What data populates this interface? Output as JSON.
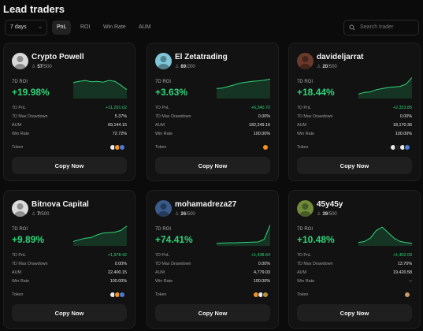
{
  "page": {
    "title": "Lead traders"
  },
  "toolbar": {
    "period_label": "7 days",
    "tabs": [
      {
        "label": "PnL",
        "active": true
      },
      {
        "label": "ROI",
        "active": false
      },
      {
        "label": "Win Rate",
        "active": false
      },
      {
        "label": "AUM",
        "active": false
      }
    ],
    "search_placeholder": "Search trader"
  },
  "card_labels": {
    "roi": "7D ROI",
    "pnl": "7D PnL",
    "drawdown": "7D Max Drawdown",
    "aum": "AUM",
    "win_rate": "Win Rate",
    "token": "Token",
    "copy_button": "Copy Now"
  },
  "traders": [
    {
      "name": "Crypto Powell",
      "followers_current": "57",
      "followers_max": "/500",
      "roi": "+19.98%",
      "pnl": "+11,291.02",
      "max_drawdown": "5.37%",
      "aum": "69,144.15",
      "win_rate": "72.72%",
      "avatar_icon": "crypto-powell-avatar-icon",
      "tokens": [
        "#e9e9e9",
        "#f7931a",
        "#4a7ad8"
      ],
      "spark": [
        0.72,
        0.78,
        0.82,
        0.76,
        0.78,
        0.74,
        0.82,
        0.78,
        0.6,
        0.4
      ]
    },
    {
      "name": "El Zetatrading",
      "followers_current": "89",
      "followers_max": "/200",
      "roi": "+3.63%",
      "pnl": "+6,340.72",
      "max_drawdown": "0.00%",
      "aum": "182,249.16",
      "win_rate": "100.00%",
      "avatar_icon": "el-zetatrading-avatar-icon",
      "tokens": [
        "#f7931a"
      ],
      "spark": [
        0.45,
        0.48,
        0.55,
        0.62,
        0.7,
        0.74,
        0.78,
        0.8,
        0.83,
        0.88
      ]
    },
    {
      "name": "davideljarrat",
      "followers_current": "20",
      "followers_max": "/500",
      "roi": "+18.44%",
      "pnl": "+2,323.85",
      "max_drawdown": "0.00%",
      "aum": "18,170.36",
      "win_rate": "100.00%",
      "avatar_icon": "davideljarrat-avatar-icon",
      "tokens": [
        "#e9e9e9",
        "#222222",
        "#e9e9e9",
        "#4a7ad8"
      ],
      "spark": [
        0.2,
        0.28,
        0.3,
        0.4,
        0.45,
        0.5,
        0.52,
        0.55,
        0.65,
        0.95
      ]
    },
    {
      "name": "Bitnova Capital",
      "followers_current": "7",
      "followers_max": "/500",
      "roi": "+9.89%",
      "pnl": "+1,978.42",
      "max_drawdown": "0.00%",
      "aum": "22,400.15",
      "win_rate": "100.00%",
      "avatar_icon": "bitnova-capital-avatar-icon",
      "tokens": [
        "#e9e9e9",
        "#f7931a",
        "#4a7ad8"
      ],
      "spark": [
        0.2,
        0.28,
        0.35,
        0.38,
        0.5,
        0.58,
        0.6,
        0.62,
        0.7,
        0.9
      ]
    },
    {
      "name": "mohamadreza27",
      "followers_current": "26",
      "followers_max": "/500",
      "roi": "+74.41%",
      "pnl": "+1,438.64",
      "max_drawdown": "0.00%",
      "aum": "4,779.03",
      "win_rate": "100.00%",
      "avatar_icon": "mohamadreza27-avatar-icon",
      "tokens": [
        "#f7931a",
        "#e9e9e9",
        "#b8903a"
      ],
      "spark": [
        0.12,
        0.13,
        0.14,
        0.14,
        0.15,
        0.16,
        0.17,
        0.18,
        0.3,
        0.95
      ]
    },
    {
      "name": "45y45y",
      "followers_current": "39",
      "followers_max": "/500",
      "roi": "+10.48%",
      "pnl": "+1,402.09",
      "max_drawdown": "13.70%",
      "aum": "19,420.58",
      "win_rate": "--",
      "avatar_icon": "45y45y-avatar-icon",
      "tokens": [
        "#c79a6a"
      ],
      "spark": [
        0.15,
        0.2,
        0.35,
        0.7,
        0.85,
        0.6,
        0.35,
        0.2,
        0.15,
        0.12
      ]
    }
  ]
}
